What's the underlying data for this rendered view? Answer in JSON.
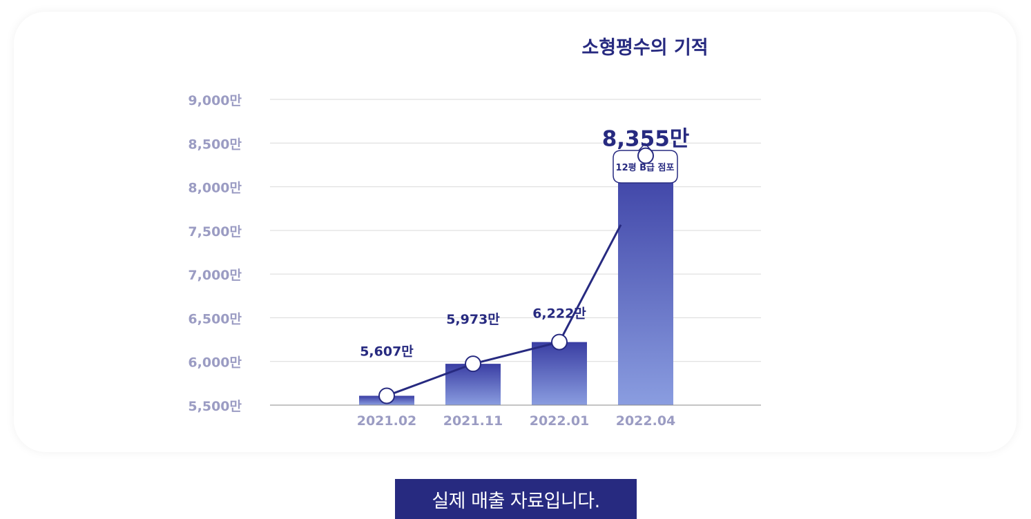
{
  "colors": {
    "navy": "#272a80",
    "bar_top": "#3a3ea3",
    "bar_bottom": "#8a9de0",
    "axis_label": "#9b9cc3",
    "grid": "#d9d9d9",
    "line": "#272a80"
  },
  "chart_data": {
    "type": "bar",
    "title": "소형평수의 기적",
    "categories": [
      "2021.02",
      "2021.11",
      "2022.01",
      "2022.04"
    ],
    "values": [
      5607,
      5973,
      6222,
      8355
    ],
    "value_labels": [
      "5,607만",
      "5,973만",
      "6,222만",
      "8,355만"
    ],
    "y_ticks": [
      9000,
      8500,
      8000,
      7500,
      7000,
      6500,
      6000,
      5500
    ],
    "y_tick_labels": [
      "9,000만",
      "8,500만",
      "8,000만",
      "7,500만",
      "7,000만",
      "6,500만",
      "6,000만",
      "5,500만"
    ],
    "ylim": [
      5500,
      9000
    ],
    "unit": "만",
    "grid": true,
    "overlay_line": true,
    "annotation": "12평 B급 점포"
  },
  "footer": {
    "label": "실제 매출 자료입니다."
  }
}
